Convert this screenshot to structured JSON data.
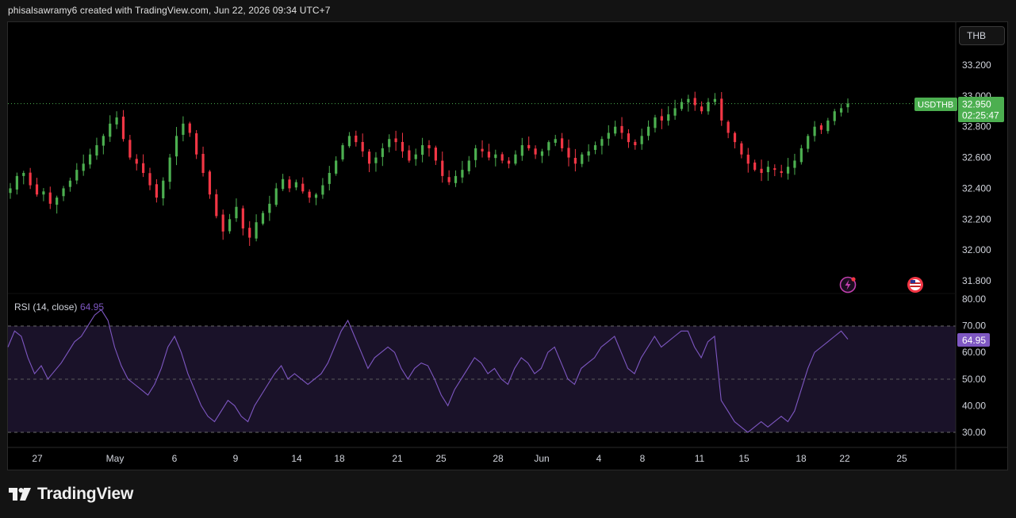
{
  "header": {
    "text": "phisalsawramy6 created with TradingView.com, Jun 22, 2026 09:34 UTC+7"
  },
  "currency_button": {
    "label": "THB"
  },
  "price_label": {
    "symbol": "USDTHB",
    "price": "32.950",
    "countdown": "02:25:47"
  },
  "rsi": {
    "title": "RSI (14, close)",
    "value": "64.95"
  },
  "footer": {
    "brand": "TradingView"
  },
  "icons": [
    "lightning-icon",
    "us-flag-icon",
    "tradingview-logo-icon"
  ],
  "colors": {
    "up": "#4caf50",
    "down": "#f23645",
    "rsi_line": "#7e57c2",
    "rsi_band": "#1a1229",
    "rsi_badge": "#7e57c2",
    "price_badge": "#4caf50"
  },
  "chart_data": [
    {
      "type": "candlestick",
      "symbol": "USDTHB",
      "ylim": [
        31.8,
        33.2
      ],
      "yticks": [
        "33.200",
        "33.000",
        "32.800",
        "32.600",
        "32.400",
        "32.200",
        "32.000",
        "31.800"
      ],
      "last_price": 32.95,
      "x_labels": [
        "27",
        "May",
        "6",
        "9",
        "14",
        "18",
        "21",
        "25",
        "28",
        "Jun",
        "4",
        "8",
        "11",
        "15",
        "18",
        "22",
        "25"
      ],
      "ohlc_closes": [
        32.4,
        32.48,
        32.5,
        32.42,
        32.36,
        32.38,
        32.3,
        32.34,
        32.4,
        32.45,
        32.52,
        32.56,
        32.62,
        32.68,
        32.74,
        32.82,
        32.86,
        32.72,
        32.6,
        32.56,
        32.5,
        32.42,
        32.34,
        32.45,
        32.6,
        32.74,
        32.82,
        32.76,
        32.62,
        32.5,
        32.36,
        32.22,
        32.12,
        32.2,
        32.28,
        32.14,
        32.08,
        32.18,
        32.24,
        32.3,
        32.4,
        32.46,
        32.4,
        32.44,
        32.38,
        32.34,
        32.36,
        32.42,
        32.5,
        32.58,
        32.68,
        32.74,
        32.7,
        32.64,
        32.56,
        32.6,
        32.66,
        32.72,
        32.7,
        32.64,
        32.58,
        32.62,
        32.68,
        32.66,
        32.58,
        32.48,
        32.44,
        32.48,
        32.52,
        32.58,
        32.66,
        32.64,
        32.6,
        32.62,
        32.58,
        32.56,
        32.62,
        32.68,
        32.66,
        32.62,
        32.64,
        32.7,
        32.72,
        32.66,
        32.6,
        32.56,
        32.62,
        32.64,
        32.68,
        32.72,
        32.76,
        32.8,
        32.76,
        32.7,
        32.68,
        32.74,
        32.8,
        32.86,
        32.84,
        32.88,
        32.92,
        32.96,
        32.98,
        32.94,
        32.9,
        32.96,
        32.98,
        32.84,
        32.76,
        32.7,
        32.62,
        32.56,
        32.52,
        32.5,
        32.54,
        32.52,
        32.5,
        32.54,
        32.58,
        32.66,
        32.74,
        32.8,
        32.78,
        32.84,
        32.9,
        32.92,
        32.95
      ]
    },
    {
      "type": "line",
      "name": "RSI (14, close)",
      "ylim": [
        25,
        80
      ],
      "yticks": [
        "80.00",
        "70.00",
        "60.00",
        "50.00",
        "40.00",
        "30.00"
      ],
      "bands": [
        70,
        50,
        30
      ],
      "values": [
        62,
        68,
        66,
        58,
        52,
        55,
        50,
        53,
        56,
        60,
        64,
        66,
        70,
        74,
        76,
        72,
        62,
        55,
        50,
        48,
        46,
        44,
        48,
        54,
        62,
        66,
        60,
        52,
        46,
        40,
        36,
        34,
        38,
        42,
        40,
        36,
        34,
        40,
        44,
        48,
        52,
        55,
        50,
        52,
        50,
        48,
        50,
        52,
        56,
        62,
        68,
        72,
        66,
        60,
        54,
        58,
        60,
        62,
        60,
        54,
        50,
        54,
        56,
        55,
        50,
        44,
        40,
        46,
        50,
        54,
        58,
        56,
        52,
        54,
        50,
        48,
        54,
        58,
        56,
        52,
        54,
        60,
        62,
        56,
        50,
        48,
        54,
        56,
        58,
        62,
        64,
        66,
        60,
        54,
        52,
        58,
        62,
        66,
        62,
        64,
        66,
        68,
        68,
        62,
        58,
        64,
        66,
        42,
        38,
        34,
        32,
        30,
        32,
        34,
        32,
        34,
        36,
        34,
        38,
        46,
        54,
        60,
        62,
        64,
        66,
        68,
        64.95
      ]
    }
  ]
}
